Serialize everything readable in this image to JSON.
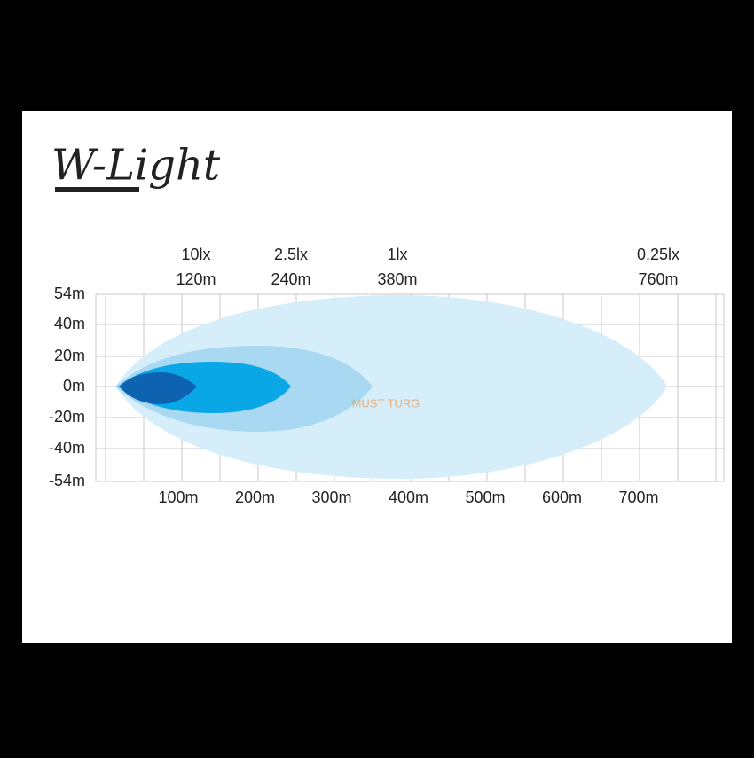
{
  "brand": "W-Light",
  "zones": [
    {
      "lux": "10lx",
      "distance": "120m"
    },
    {
      "lux": "2.5lx",
      "distance": "240m"
    },
    {
      "lux": "1lx",
      "distance": "380m"
    },
    {
      "lux": "0.25lx",
      "distance": "760m"
    }
  ],
  "y_labels": [
    "54m",
    "40m",
    "20m",
    "0m",
    "-20m",
    "-40m",
    "-54m"
  ],
  "x_labels": [
    "100m",
    "200m",
    "300m",
    "400m",
    "500m",
    "600m",
    "700m"
  ],
  "watermark": "MUST TURG"
}
